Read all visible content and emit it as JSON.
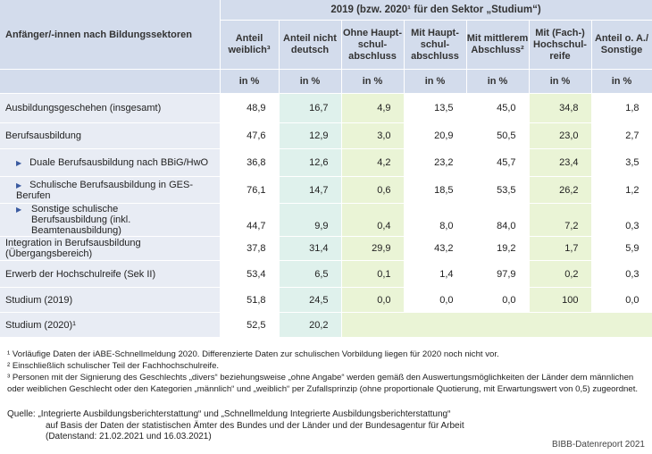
{
  "header": {
    "row_label": "Anfänger/-innen nach Bildungssektoren",
    "group_title": "2019 (bzw. 2020¹ für den Sektor „Studium“)",
    "columns": [
      "Anteil weiblich³",
      "Anteil nicht deutsch",
      "Ohne Haupt-schul-abschluss",
      "Mit Haupt-schul-abschluss",
      "Mit mittlerem Abschluss²",
      "Mit (Fach-) Hochschul-reife",
      "Anteil o. A./ Sonstige"
    ],
    "unit": "in %"
  },
  "rows": [
    {
      "label": "Ausbildungsgeschehen (insgesamt)",
      "values": [
        "48,9",
        "16,7",
        "4,9",
        "13,5",
        "45,0",
        "34,8",
        "1,8"
      ]
    },
    {
      "label": "Berufsausbildung",
      "values": [
        "47,6",
        "12,9",
        "3,0",
        "20,9",
        "50,5",
        "23,0",
        "2,7"
      ]
    },
    {
      "label": "Duale Berufsausbildung nach BBiG/HwO",
      "values": [
        "36,8",
        "12,6",
        "4,2",
        "23,2",
        "45,7",
        "23,4",
        "3,5"
      ]
    },
    {
      "label": "Schulische Berufsausbildung in GES-Berufen",
      "values": [
        "76,1",
        "14,7",
        "0,6",
        "18,5",
        "53,5",
        "26,2",
        "1,2"
      ]
    },
    {
      "label": "Sonstige schulische Berufsausbildung (inkl. Beamtenausbildung)",
      "values": [
        "44,7",
        "9,9",
        "0,4",
        "8,0",
        "84,0",
        "7,2",
        "0,3"
      ]
    },
    {
      "label": "Integration in Berufsausbildung (Übergangsbereich)",
      "values": [
        "37,8",
        "31,4",
        "29,9",
        "43,2",
        "19,2",
        "1,7",
        "5,9"
      ]
    },
    {
      "label": "Erwerb der Hochschulreife (Sek II)",
      "values": [
        "53,4",
        "6,5",
        "0,1",
        "1,4",
        "97,9",
        "0,2",
        "0,3"
      ]
    },
    {
      "label": "Studium (2019)",
      "values": [
        "51,8",
        "24,5",
        "0,0",
        "0,0",
        "0,0",
        "100",
        "0,0"
      ]
    },
    {
      "label": "Studium (2020)¹",
      "values": [
        "52,5",
        "20,2"
      ]
    }
  ],
  "footnotes": [
    "¹ Vorläufige Daten der iABE-Schnellmeldung 2020. Differenzierte Daten zur schulischen Vorbildung liegen für 2020 noch nicht vor.",
    "² Einschließlich schulischer Teil der Fachhochschulreife.",
    "³ Personen mit der Signierung des Geschlechts „divers“ beziehungsweise „ohne Angabe“ werden gemäß den Auswertungsmöglichkeiten der Länder dem männlichen oder weiblichen Geschlecht oder den Kategorien „männlich“ und „weiblich“ per Zufallsprinzip (ohne proportionale Quotierung, mit Erwartungswert von 0,5) zugeordnet."
  ],
  "source": {
    "line1": "Quelle: „Integrierte Ausbildungsberichterstattung“ und „Schnellmeldung Integrierte Ausbildungsberichterstattung“",
    "line2": "auf Basis der Daten der statistischen Ämter des Bundes und der Länder und der Bundesagentur für Arbeit",
    "line3": "(Datenstand: 21.02.2021 und 16.03.2021)"
  },
  "credit": "BIBB-Datenreport 2021"
}
